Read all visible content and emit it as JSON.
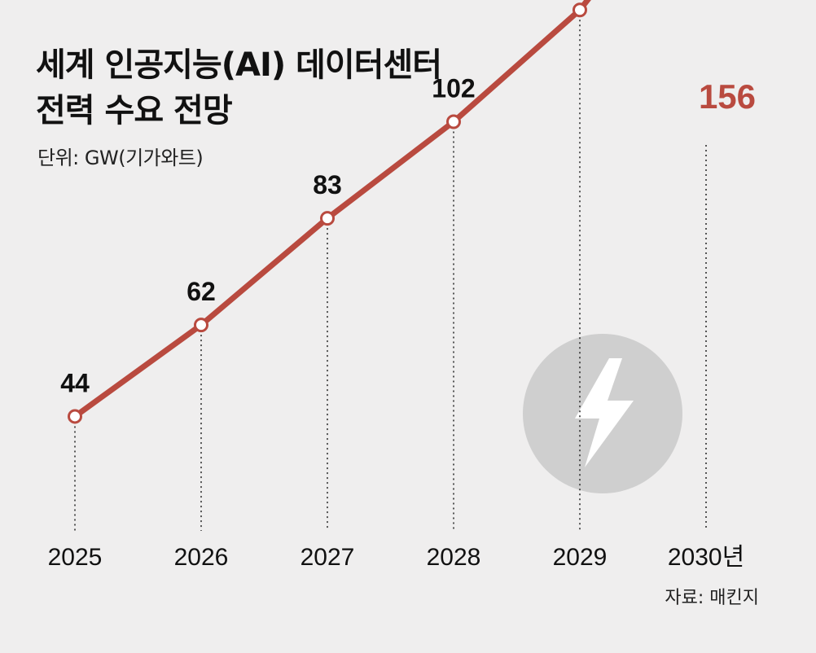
{
  "header": {
    "title_line1": "세계 인공지능(AI) 데이터센터",
    "title_line2": "전력 수요 전망",
    "unit": "단위: GW(기가와트)"
  },
  "footer": {
    "source": "자료: 매킨지"
  },
  "colors": {
    "line": "#b94a3f",
    "background": "#efeeee",
    "bolt_circle": "#cfcfcf"
  },
  "icon": "lightning-bolt-icon",
  "chart_data": {
    "type": "line",
    "title": "세계 인공지능(AI) 데이터센터 전력 수요 전망",
    "ylabel": "GW(기가와트)",
    "categories": [
      "2025",
      "2026",
      "2027",
      "2028",
      "2029",
      "2030년"
    ],
    "series": [
      {
        "name": "전력 수요",
        "values": [
          44,
          62,
          83,
          102,
          124,
          156
        ]
      }
    ],
    "ylim": [
      0,
      180
    ],
    "grid": false
  }
}
